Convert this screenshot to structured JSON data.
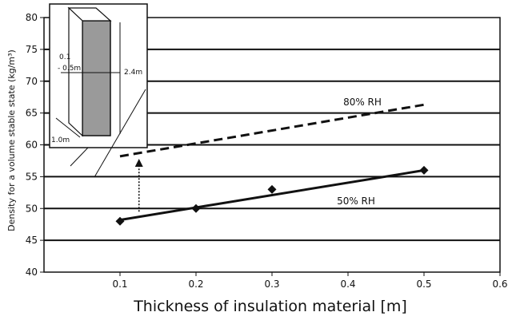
{
  "chart_data": {
    "type": "line",
    "xlabel": "Thickness of insulation material [m]",
    "ylabel": "Density for a volume stable state (kg/m³)",
    "xlim": [
      0,
      0.6
    ],
    "ylim": [
      40,
      80
    ],
    "x_ticks": [
      0.1,
      0.2,
      0.3,
      0.4,
      0.5,
      0.6
    ],
    "y_ticks": [
      40,
      45,
      50,
      55,
      60,
      65,
      70,
      75,
      80
    ],
    "grid": "horizontal",
    "series": [
      {
        "name": "50% RH",
        "style": "solid",
        "markers": "diamond",
        "points": [
          {
            "x": 0.1,
            "y": 48
          },
          {
            "x": 0.2,
            "y": 50
          },
          {
            "x": 0.3,
            "y": 53
          },
          {
            "x": 0.5,
            "y": 56
          }
        ],
        "trend": [
          {
            "x": 0.1,
            "y": 48.2
          },
          {
            "x": 0.5,
            "y": 56
          }
        ]
      },
      {
        "name": "80% RH",
        "style": "dashed",
        "markers": "none",
        "trend": [
          {
            "x": 0.1,
            "y": 58.2
          },
          {
            "x": 0.5,
            "y": 66.3
          }
        ]
      }
    ],
    "arrow": {
      "x": 0.125,
      "from_y": 49.5,
      "to_y": 57.8
    },
    "inset": {
      "labels": [
        "0.1",
        "- 0.5m",
        "2.4m",
        "1.0m"
      ]
    }
  }
}
